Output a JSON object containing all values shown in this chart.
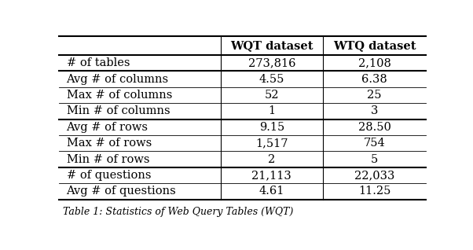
{
  "col_headers": [
    "",
    "WQT dataset",
    "WTQ dataset"
  ],
  "rows": [
    [
      "# of tables",
      "273,816",
      "2,108"
    ],
    [
      "Avg # of columns",
      "4.55",
      "6.38"
    ],
    [
      "Max # of columns",
      "52",
      "25"
    ],
    [
      "Min # of columns",
      "1",
      "3"
    ],
    [
      "Avg # of rows",
      "9.15",
      "28.50"
    ],
    [
      "Max # of rows",
      "1,517",
      "754"
    ],
    [
      "Min # of rows",
      "2",
      "5"
    ],
    [
      "# of questions",
      "21,113",
      "22,033"
    ],
    [
      "Avg # of questions",
      "4.61",
      "11.25"
    ]
  ],
  "thick_after_data_rows": [
    0,
    3,
    6,
    8
  ],
  "bg_color": "#ffffff",
  "text_color": "#000000",
  "font_size": 10.5,
  "caption": "Table 1: Statistics of Web Query Tables (WQT)"
}
